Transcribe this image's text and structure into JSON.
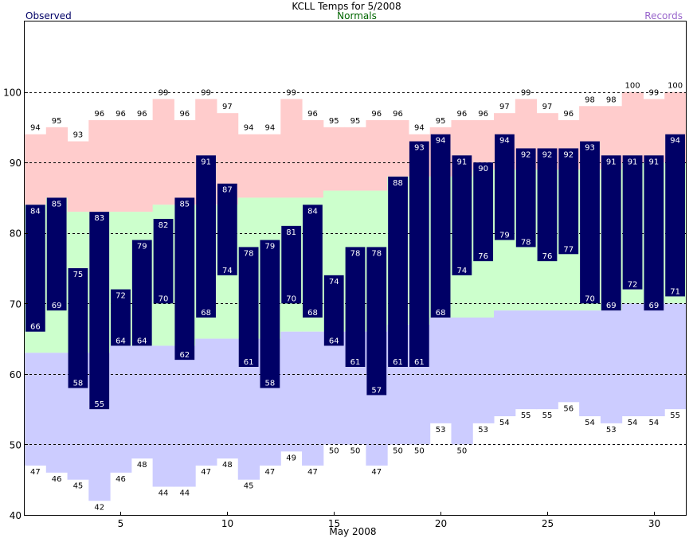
{
  "chart_data": {
    "type": "bar",
    "title": "KCLL Temps for 5/2008",
    "xlabel": "May 2008",
    "ylabel": "",
    "ylim": [
      40,
      110
    ],
    "yticks": [
      40,
      50,
      60,
      70,
      80,
      90,
      100
    ],
    "xticks": [
      5,
      10,
      15,
      20,
      25,
      30
    ],
    "grid": "dashed horizontal at 50, 60, 70, 80, 90, 100",
    "legend": [
      {
        "name": "Observed",
        "color": "#000066",
        "position": "top-left"
      },
      {
        "name": "Normals",
        "color": "#006600",
        "position": "top-center"
      },
      {
        "name": "Records",
        "color": "#9966cc",
        "position": "top-right"
      }
    ],
    "colors": {
      "observed": "#000066",
      "normal_band": "#ccffcc",
      "record_high_band": "#ffcccc",
      "record_low_band": "#ccccff",
      "observed_label": "#ffffff"
    },
    "days": [
      1,
      2,
      3,
      4,
      5,
      6,
      7,
      8,
      9,
      10,
      11,
      12,
      13,
      14,
      15,
      16,
      17,
      18,
      19,
      20,
      21,
      22,
      23,
      24,
      25,
      26,
      27,
      28,
      29,
      30,
      31
    ],
    "observed_high": [
      84,
      85,
      75,
      83,
      72,
      79,
      82,
      85,
      91,
      87,
      78,
      79,
      81,
      84,
      74,
      78,
      78,
      88,
      93,
      94,
      91,
      90,
      94,
      92,
      92,
      92,
      93,
      91,
      91,
      91,
      94
    ],
    "observed_low": [
      66,
      69,
      58,
      55,
      64,
      64,
      70,
      62,
      68,
      74,
      61,
      58,
      70,
      68,
      64,
      61,
      57,
      61,
      61,
      68,
      74,
      76,
      79,
      78,
      76,
      77,
      70,
      69,
      72,
      69,
      71
    ],
    "normal_high": [
      84,
      85,
      83,
      83,
      83,
      83,
      84,
      84,
      84,
      84,
      85,
      85,
      85,
      85,
      86,
      86,
      86,
      88,
      88,
      88,
      88,
      89,
      89,
      89,
      89,
      89,
      89,
      89,
      90,
      90,
      90
    ],
    "normal_low": [
      63,
      63,
      63,
      63,
      64,
      64,
      64,
      64,
      65,
      65,
      65,
      65,
      66,
      66,
      66,
      66,
      66,
      67,
      67,
      68,
      68,
      68,
      69,
      69,
      69,
      69,
      69,
      69,
      70,
      70,
      70
    ],
    "record_high": [
      94,
      95,
      93,
      96,
      96,
      96,
      99,
      96,
      99,
      97,
      94,
      94,
      99,
      96,
      95,
      95,
      96,
      96,
      94,
      95,
      96,
      96,
      97,
      99,
      97,
      96,
      98,
      98,
      100,
      99,
      100
    ],
    "record_low": [
      47,
      46,
      45,
      42,
      46,
      48,
      44,
      44,
      47,
      48,
      45,
      47,
      49,
      47,
      50,
      50,
      47,
      50,
      50,
      53,
      50,
      53,
      54,
      55,
      55,
      56,
      54,
      53,
      54,
      54,
      55
    ]
  }
}
